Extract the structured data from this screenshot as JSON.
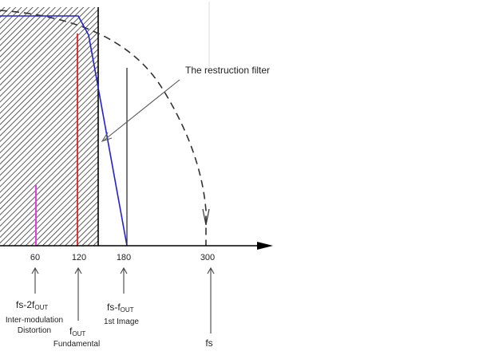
{
  "diagram": {
    "annotation": "The restruction filter",
    "axis_ticks": [
      "60",
      "120",
      "180",
      "300"
    ],
    "markers": {
      "m60": {
        "main": "fs-2f",
        "sub": "OUT",
        "line2": "Inter-modulation",
        "line3": "Distortion"
      },
      "m120": {
        "main": "f",
        "sub": "OUT",
        "line2": "Fundamental"
      },
      "m180": {
        "main": "fs-f",
        "sub": "OUT",
        "line2": "1st Image"
      },
      "m300": {
        "main": "fs"
      }
    },
    "colors": {
      "filter_response": "#2222cc",
      "fundamental": "#dd2222",
      "intermod": "#e040e0",
      "axis": "#000000",
      "hatch": "#333333"
    }
  }
}
